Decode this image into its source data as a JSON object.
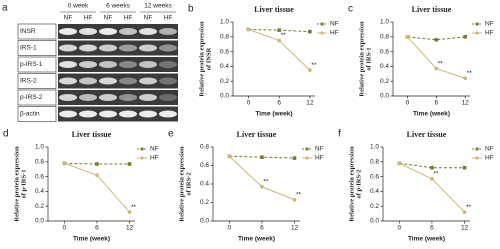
{
  "blot": {
    "panel_label": "a",
    "timepoints": [
      "0 week",
      "6 weeks",
      "12 weeks"
    ],
    "groups": [
      "NF",
      "HF",
      "NF",
      "HF",
      "NF",
      "HF"
    ],
    "proteins": [
      "INSR",
      "IRS-1",
      "p-IRS-1",
      "IRS-2",
      "p-IRS-2",
      "β-actin"
    ]
  },
  "chart_data": [
    {
      "type": "line",
      "panel_label": "b",
      "title": "Liver tissue",
      "ylabel": [
        "Relative protein expression",
        "of INSR"
      ],
      "xlabel": "Time (week)",
      "x": [
        0,
        6,
        12
      ],
      "xlim": [
        -3,
        13
      ],
      "xticks": [
        0,
        6,
        12
      ],
      "ylim": [
        0,
        1
      ],
      "yticks": [
        {
          "value": 0,
          "label": "0.0"
        },
        0.2,
        0.4,
        0.6,
        0.8,
        {
          "value": 1,
          "label": "1.0"
        }
      ],
      "legend": "upper right",
      "series": [
        {
          "name": "NF",
          "color": "#7a7a2e",
          "values": [
            0.9,
            0.89,
            0.87
          ]
        },
        {
          "name": "HF",
          "color": "#c8bb78",
          "values": [
            0.9,
            0.75,
            0.35
          ],
          "point_labels": [
            null,
            "**",
            "**"
          ]
        }
      ]
    },
    {
      "type": "line",
      "panel_label": "c",
      "title": "Liver tissue",
      "ylabel": [
        "Relative protein expression",
        "of IRS-1"
      ],
      "xlabel": "Time (week)",
      "x": [
        0,
        6,
        12
      ],
      "xlim": [
        -3,
        13
      ],
      "xticks": [
        0,
        6,
        12
      ],
      "ylim": [
        0,
        1
      ],
      "yticks": [
        {
          "value": 0,
          "label": "0.0"
        },
        0.2,
        0.4,
        0.6,
        0.8,
        {
          "value": 1,
          "label": "1.0"
        }
      ],
      "legend": "upper right",
      "series": [
        {
          "name": "NF",
          "color": "#7a7a2e",
          "values": [
            0.8,
            0.76,
            0.8
          ]
        },
        {
          "name": "HF",
          "color": "#c8bb78",
          "values": [
            0.8,
            0.37,
            0.24
          ],
          "point_labels": [
            null,
            "**",
            "**"
          ]
        }
      ]
    },
    {
      "type": "line",
      "panel_label": "d",
      "title": "Liver tissue",
      "ylabel": [
        "Relative protein expression",
        "of p-IRS-1"
      ],
      "xlabel": "Time (week)",
      "x": [
        0,
        6,
        12
      ],
      "xlim": [
        -3,
        13
      ],
      "xticks": [
        0,
        6,
        12
      ],
      "ylim": [
        0,
        1
      ],
      "yticks": [
        {
          "value": 0,
          "label": "0.0"
        },
        0.2,
        0.4,
        0.6,
        0.8,
        {
          "value": 1,
          "label": "1.0"
        }
      ],
      "legend": "upper right",
      "series": [
        {
          "name": "NF",
          "color": "#7a7a2e",
          "values": [
            0.78,
            0.77,
            0.77
          ]
        },
        {
          "name": "HF",
          "color": "#c8bb78",
          "values": [
            0.78,
            0.62,
            0.12
          ],
          "point_labels": [
            null,
            null,
            "**"
          ]
        }
      ]
    },
    {
      "type": "line",
      "panel_label": "e",
      "title": "Liver tissue",
      "ylabel": [
        "Relative protein expression",
        "of IRS-2"
      ],
      "xlabel": "Time (week)",
      "x": [
        0,
        6,
        12
      ],
      "xlim": [
        -3,
        13
      ],
      "xticks": [
        0,
        6,
        12
      ],
      "ylim": [
        0,
        0.8
      ],
      "yticks": [
        {
          "value": 0,
          "label": "0.0"
        },
        0.2,
        0.4,
        0.6,
        0.8
      ],
      "legend": "upper right",
      "series": [
        {
          "name": "NF",
          "color": "#7a7a2e",
          "values": [
            0.7,
            0.69,
            0.68
          ]
        },
        {
          "name": "HF",
          "color": "#c8bb78",
          "values": [
            0.7,
            0.37,
            0.23
          ],
          "point_labels": [
            null,
            "**",
            "**"
          ]
        }
      ]
    },
    {
      "type": "line",
      "panel_label": "f",
      "title": "Liver tissue",
      "ylabel": [
        "Relative protein expression",
        "of p-IRS-2"
      ],
      "xlabel": "Time (week)",
      "x": [
        0,
        6,
        12
      ],
      "xlim": [
        -3,
        13
      ],
      "xticks": [
        0,
        6,
        12
      ],
      "ylim": [
        0,
        1
      ],
      "yticks": [
        {
          "value": 0,
          "label": "0.0"
        },
        0.2,
        0.4,
        0.6,
        0.8,
        {
          "value": 1,
          "label": "1.0"
        }
      ],
      "legend": "upper right",
      "series": [
        {
          "name": "NF",
          "color": "#7a7a2e",
          "values": [
            0.78,
            0.72,
            0.72
          ]
        },
        {
          "name": "HF",
          "color": "#c8bb78",
          "values": [
            0.78,
            0.57,
            0.12
          ],
          "point_labels": [
            null,
            "**",
            "**"
          ]
        }
      ]
    }
  ]
}
